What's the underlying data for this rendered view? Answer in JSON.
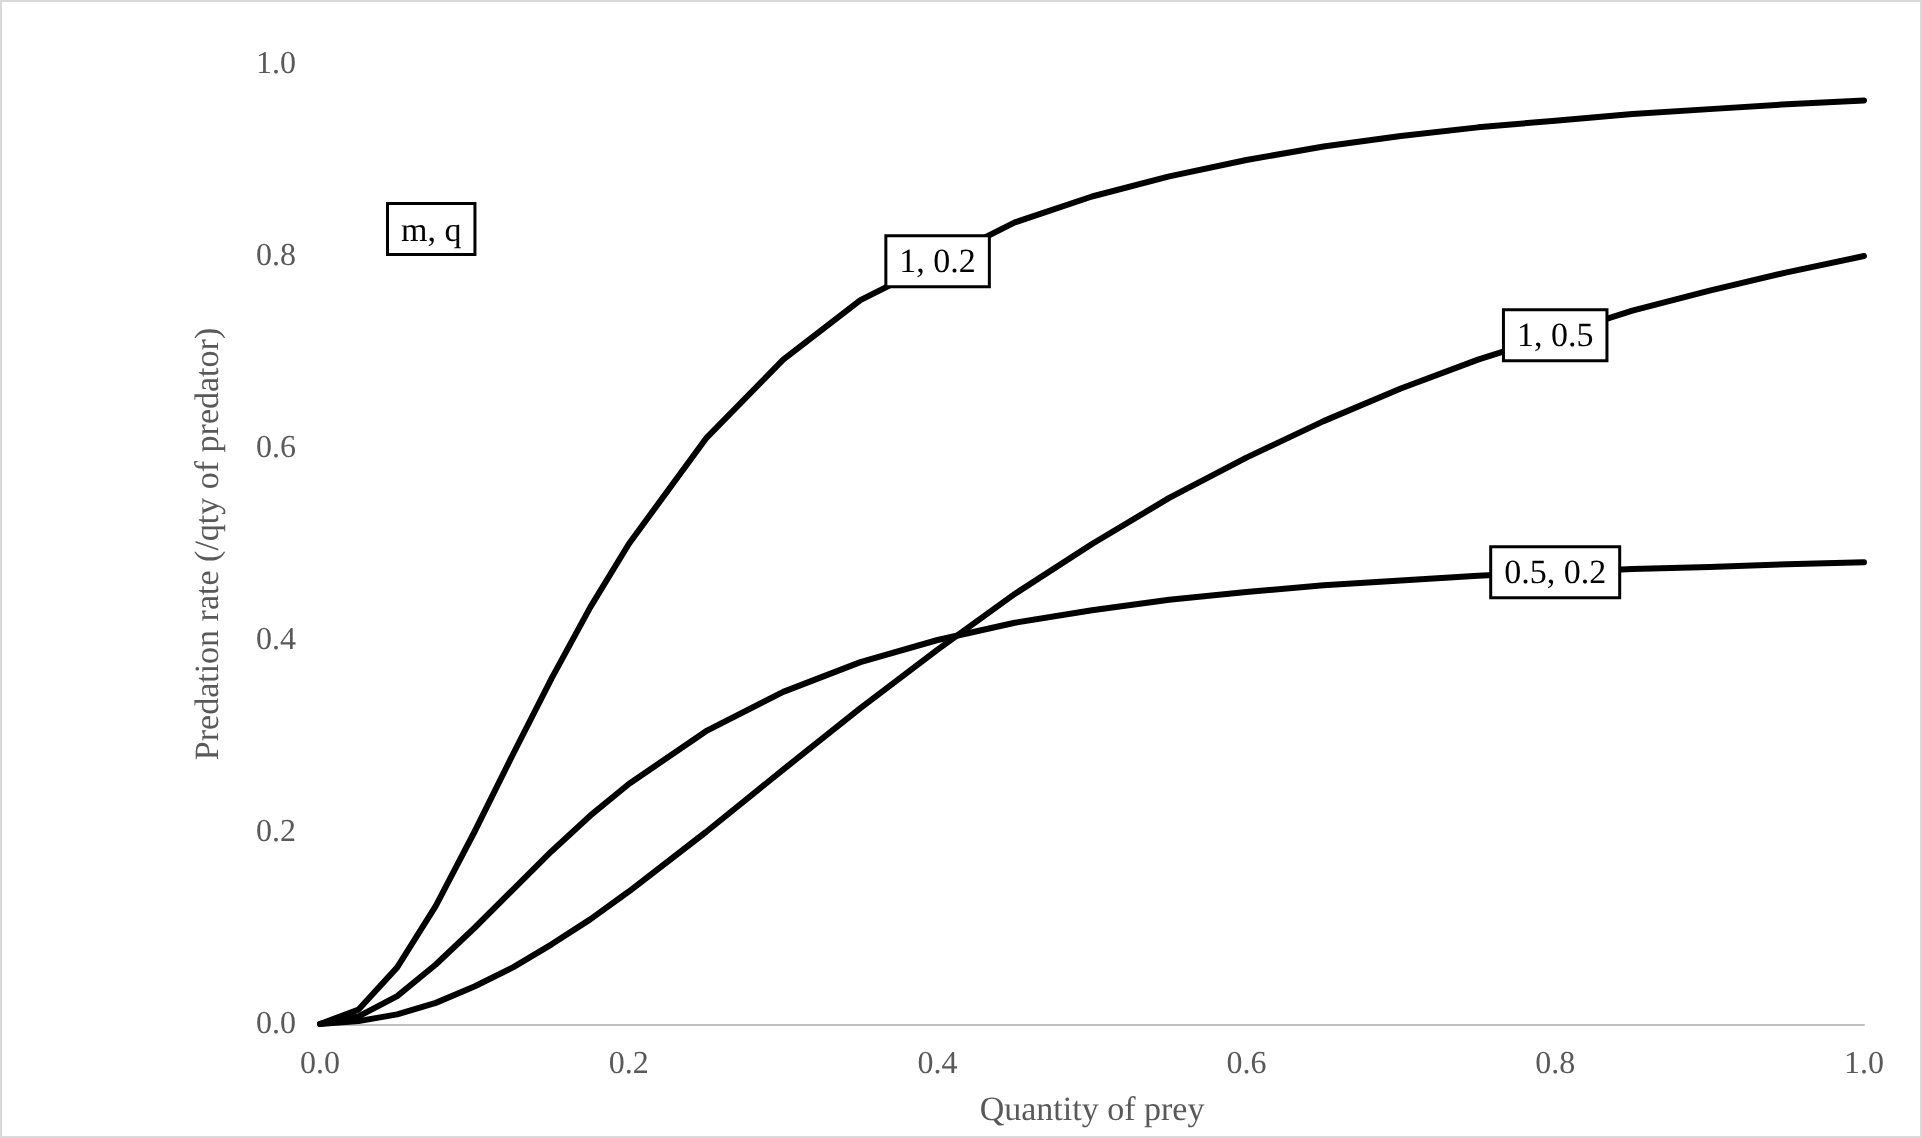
{
  "chart_data": {
    "type": "line",
    "xlabel": "Quantity of prey",
    "ylabel": "Predation rate (/qty of predator)",
    "annotations": [
      "m, q"
    ],
    "x": [
      0,
      0.025,
      0.05,
      0.075,
      0.1,
      0.125,
      0.15,
      0.175,
      0.2,
      0.25,
      0.3,
      0.35,
      0.4,
      0.45,
      0.5,
      0.55,
      0.6,
      0.65,
      0.7,
      0.75,
      0.8,
      0.85,
      0.9,
      0.95,
      1.0
    ],
    "series": [
      {
        "name": "1, 0.2",
        "color": "#000000",
        "values": [
          0,
          0.015,
          0.059,
          0.123,
          0.2,
          0.281,
          0.36,
          0.434,
          0.5,
          0.61,
          0.692,
          0.754,
          null,
          0.835,
          0.862,
          0.883,
          0.9,
          0.914,
          0.925,
          0.934,
          0.941,
          0.948,
          0.953,
          0.958,
          0.962
        ]
      },
      {
        "name": "1, 0.5",
        "color": "#000000",
        "values": [
          0,
          0.003,
          0.01,
          0.022,
          0.039,
          0.059,
          0.083,
          0.109,
          0.138,
          0.2,
          0.265,
          0.329,
          0.39,
          0.448,
          0.5,
          0.548,
          0.59,
          0.628,
          0.662,
          0.692,
          null,
          0.743,
          0.764,
          0.783,
          0.8
        ]
      },
      {
        "name": "0.5, 0.2",
        "color": "#000000",
        "values": [
          0,
          0.008,
          0.029,
          0.062,
          0.1,
          0.14,
          0.18,
          0.217,
          0.25,
          0.305,
          0.346,
          0.377,
          0.4,
          0.418,
          0.431,
          0.442,
          0.45,
          0.457,
          0.462,
          0.467,
          null,
          0.474,
          0.476,
          0.479,
          0.481
        ]
      }
    ],
    "xlim": [
      0,
      1.0
    ],
    "xticks": [
      {
        "value": 0,
        "label": "0.0"
      },
      {
        "value": 0.2,
        "label": "0.2"
      },
      {
        "value": 0.4,
        "label": "0.4"
      },
      {
        "value": 0.6,
        "label": "0.6"
      },
      {
        "value": 0.8,
        "label": "0.8"
      },
      {
        "value": 1.0,
        "label": "1.0"
      }
    ],
    "ylim": [
      0,
      1.0
    ],
    "yticks": [
      {
        "value": 0,
        "label": "0.0"
      },
      {
        "value": 0.2,
        "label": "0.2"
      },
      {
        "value": 0.4,
        "label": "0.4"
      },
      {
        "value": 0.6,
        "label": "0.6"
      },
      {
        "value": 0.8,
        "label": "0.8"
      },
      {
        "value": 1.0,
        "label": "1.0"
      }
    ],
    "grid": false,
    "legend": false,
    "marker": "none",
    "line_style": "solid"
  }
}
